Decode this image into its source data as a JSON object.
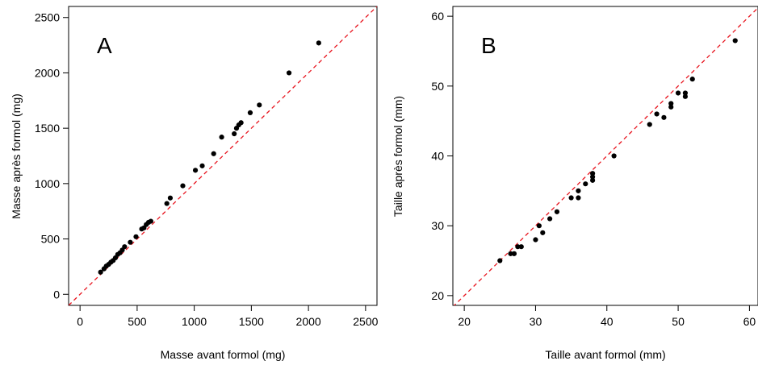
{
  "chart_data": [
    {
      "type": "scatter",
      "panel_letter": "A",
      "xlabel": "Masse avant formol (mg)",
      "ylabel": "Masse après formol (mg)",
      "xlim": [
        -100,
        2600
      ],
      "ylim": [
        -100,
        2600
      ],
      "xticks": [
        "0",
        "500",
        "1000",
        "1500",
        "2000",
        "2500"
      ],
      "yticks": [
        "0",
        "500",
        "1000",
        "1500",
        "2000",
        "2500"
      ],
      "xtick_values": [
        0,
        500,
        1000,
        1500,
        2000,
        2500
      ],
      "ytick_values": [
        0,
        500,
        1000,
        1500,
        2000,
        2500
      ],
      "reference_line": "y = x",
      "grid": false,
      "points": [
        {
          "x": 180,
          "y": 200
        },
        {
          "x": 210,
          "y": 230
        },
        {
          "x": 230,
          "y": 255
        },
        {
          "x": 250,
          "y": 270
        },
        {
          "x": 270,
          "y": 290
        },
        {
          "x": 290,
          "y": 305
        },
        {
          "x": 310,
          "y": 330
        },
        {
          "x": 330,
          "y": 360
        },
        {
          "x": 350,
          "y": 375
        },
        {
          "x": 370,
          "y": 400
        },
        {
          "x": 390,
          "y": 430
        },
        {
          "x": 440,
          "y": 470
        },
        {
          "x": 490,
          "y": 520
        },
        {
          "x": 540,
          "y": 590
        },
        {
          "x": 560,
          "y": 600
        },
        {
          "x": 580,
          "y": 630
        },
        {
          "x": 600,
          "y": 650
        },
        {
          "x": 620,
          "y": 660
        },
        {
          "x": 760,
          "y": 820
        },
        {
          "x": 790,
          "y": 870
        },
        {
          "x": 900,
          "y": 980
        },
        {
          "x": 1010,
          "y": 1120
        },
        {
          "x": 1070,
          "y": 1160
        },
        {
          "x": 1170,
          "y": 1270
        },
        {
          "x": 1240,
          "y": 1420
        },
        {
          "x": 1350,
          "y": 1450
        },
        {
          "x": 1370,
          "y": 1500
        },
        {
          "x": 1390,
          "y": 1530
        },
        {
          "x": 1410,
          "y": 1550
        },
        {
          "x": 1490,
          "y": 1640
        },
        {
          "x": 1570,
          "y": 1710
        },
        {
          "x": 1830,
          "y": 2000
        },
        {
          "x": 2090,
          "y": 2270
        }
      ]
    },
    {
      "type": "scatter",
      "panel_letter": "B",
      "xlabel": "Taille avant formol (mm)",
      "ylabel": "Taille après formol (mm)",
      "xlim": [
        18.4,
        61.2
      ],
      "ylim": [
        18.6,
        61.4
      ],
      "xticks": [
        "20",
        "30",
        "40",
        "50",
        "60"
      ],
      "yticks": [
        "20",
        "30",
        "40",
        "50",
        "60"
      ],
      "xtick_values": [
        20,
        30,
        40,
        50,
        60
      ],
      "ytick_values": [
        20,
        30,
        40,
        50,
        60
      ],
      "reference_line": "y = x",
      "grid": false,
      "points": [
        {
          "x": 25,
          "y": 25
        },
        {
          "x": 26.5,
          "y": 26
        },
        {
          "x": 27,
          "y": 26
        },
        {
          "x": 27.5,
          "y": 27
        },
        {
          "x": 28,
          "y": 27
        },
        {
          "x": 30,
          "y": 28
        },
        {
          "x": 30.5,
          "y": 30
        },
        {
          "x": 31,
          "y": 29
        },
        {
          "x": 32,
          "y": 31
        },
        {
          "x": 33,
          "y": 32
        },
        {
          "x": 35,
          "y": 34
        },
        {
          "x": 36,
          "y": 34
        },
        {
          "x": 36,
          "y": 35
        },
        {
          "x": 37,
          "y": 36
        },
        {
          "x": 38,
          "y": 36.5
        },
        {
          "x": 38,
          "y": 37
        },
        {
          "x": 38,
          "y": 37.5
        },
        {
          "x": 41,
          "y": 40
        },
        {
          "x": 46,
          "y": 44.5
        },
        {
          "x": 47,
          "y": 46
        },
        {
          "x": 48,
          "y": 45.5
        },
        {
          "x": 49,
          "y": 47
        },
        {
          "x": 49,
          "y": 47.5
        },
        {
          "x": 50,
          "y": 49
        },
        {
          "x": 51,
          "y": 48.5
        },
        {
          "x": 51,
          "y": 49
        },
        {
          "x": 52,
          "y": 51
        },
        {
          "x": 58,
          "y": 56.5
        }
      ]
    }
  ],
  "colors": {
    "points": "#000000",
    "reference_line": "#e8141e",
    "axes": "#000000",
    "background": "#ffffff"
  }
}
